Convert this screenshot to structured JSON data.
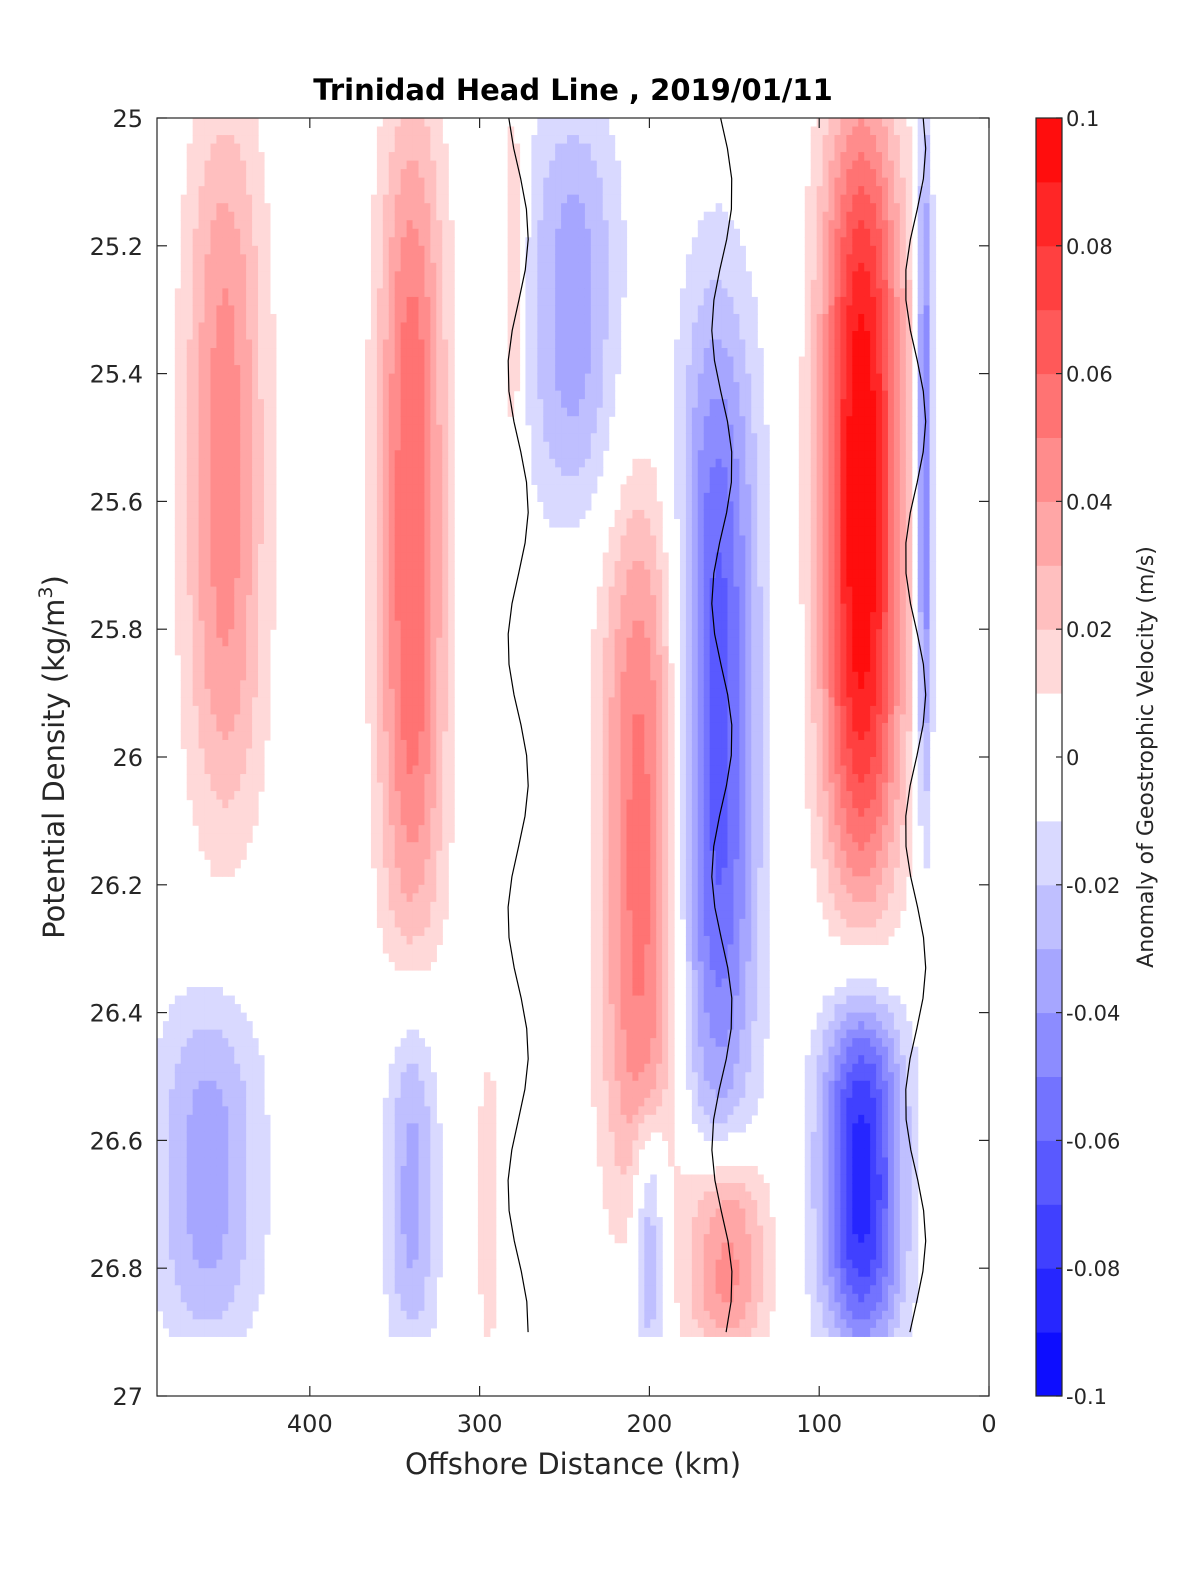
{
  "chart_data": {
    "type": "heatmap",
    "title": "Trinidad Head Line , 2019/01/11",
    "xlabel": "Offshore Distance (km)",
    "ylabel_main": "Potential Density (kg/m",
    "ylabel_sup": "3",
    "ylabel_close": ")",
    "colorbar_label": "Anomaly of Geostrophic Velocity (m/s)",
    "xlim": [
      490,
      0
    ],
    "x_reversed": true,
    "x_ticks": [
      400,
      300,
      200,
      100,
      0
    ],
    "ylim": [
      25,
      27
    ],
    "y_reversed": true,
    "y_ticks": [
      "25",
      "25.2",
      "25.4",
      "25.6",
      "25.8",
      "26",
      "26.2",
      "26.4",
      "26.6",
      "26.8",
      "27"
    ],
    "y_tick_values": [
      25,
      25.2,
      25.4,
      25.6,
      25.8,
      26,
      26.2,
      26.4,
      26.6,
      26.8,
      27
    ],
    "colorbar": {
      "range": [
        -0.1,
        0.1
      ],
      "levels": [
        -0.1,
        -0.09,
        -0.08,
        -0.07,
        -0.06,
        -0.05,
        -0.04,
        -0.03,
        -0.02,
        -0.01,
        0,
        0.01,
        0.02,
        0.03,
        0.04,
        0.05,
        0.06,
        0.07,
        0.08,
        0.09,
        0.1
      ],
      "tick_values": [
        -0.1,
        -0.08,
        -0.06,
        -0.04,
        -0.02,
        0,
        0.02,
        0.04,
        0.06,
        0.08,
        0.1
      ],
      "tick_labels": [
        "-0.1",
        "-0.08",
        "-0.06",
        "-0.04",
        "-0.02",
        "0",
        "0.02",
        "0.04",
        "0.06",
        "0.08",
        "0.1"
      ],
      "colormap": "blue-white-red",
      "negative_color": "#0000ff",
      "positive_color": "#ff0000",
      "zero_color": "#ffffff"
    },
    "features": [
      {
        "name": "offshore-positive-core-1",
        "x_center": 450,
        "x_halfwidth": 30,
        "y_top": 25.0,
        "y_bottom": 26.1,
        "peak": 0.045
      },
      {
        "name": "positive-core-2",
        "x_center": 340,
        "x_halfwidth": 25,
        "y_top": 25.0,
        "y_bottom": 26.3,
        "peak": 0.06
      },
      {
        "name": "narrow-positive",
        "x_center": 280,
        "x_halfwidth": 8,
        "y_top": 25.0,
        "y_bottom": 25.5,
        "peak": 0.025
      },
      {
        "name": "negative-band-1",
        "x_center": 245,
        "x_halfwidth": 35,
        "y_top": 25.0,
        "y_bottom": 25.6,
        "peak": -0.035
      },
      {
        "name": "positive-core-3",
        "x_center": 205,
        "x_halfwidth": 30,
        "y_top": 25.6,
        "y_bottom": 26.7,
        "peak": 0.055
      },
      {
        "name": "negative-core-2",
        "x_center": 160,
        "x_halfwidth": 30,
        "y_top": 25.3,
        "y_bottom": 26.6,
        "peak": -0.065
      },
      {
        "name": "coastal-positive-jet",
        "x_center": 75,
        "x_halfwidth": 30,
        "y_top": 25.0,
        "y_bottom": 26.2,
        "peak": 0.1
      },
      {
        "name": "inshore-negative-strip",
        "x_center": 38,
        "x_halfwidth": 6,
        "y_top": 25.0,
        "y_bottom": 26.1,
        "peak": -0.055
      },
      {
        "name": "deep-negative-1",
        "x_center": 460,
        "x_halfwidth": 40,
        "y_top": 26.4,
        "y_bottom": 26.9,
        "peak": -0.035
      },
      {
        "name": "deep-negative-2",
        "x_center": 340,
        "x_halfwidth": 20,
        "y_top": 26.4,
        "y_bottom": 26.9,
        "peak": -0.035
      },
      {
        "name": "deep-positive-1",
        "x_center": 295,
        "x_halfwidth": 8,
        "y_top": 26.5,
        "y_bottom": 26.9,
        "peak": 0.02
      },
      {
        "name": "deep-negative-3",
        "x_center": 200,
        "x_halfwidth": 12,
        "y_top": 26.6,
        "y_bottom": 26.9,
        "peak": -0.04
      },
      {
        "name": "deep-positive-2",
        "x_center": 155,
        "x_halfwidth": 30,
        "y_top": 26.65,
        "y_bottom": 26.9,
        "peak": 0.05
      },
      {
        "name": "deep-negative-coastal",
        "x_center": 75,
        "x_halfwidth": 30,
        "y_top": 26.4,
        "y_bottom": 26.9,
        "peak": -0.085
      }
    ]
  }
}
